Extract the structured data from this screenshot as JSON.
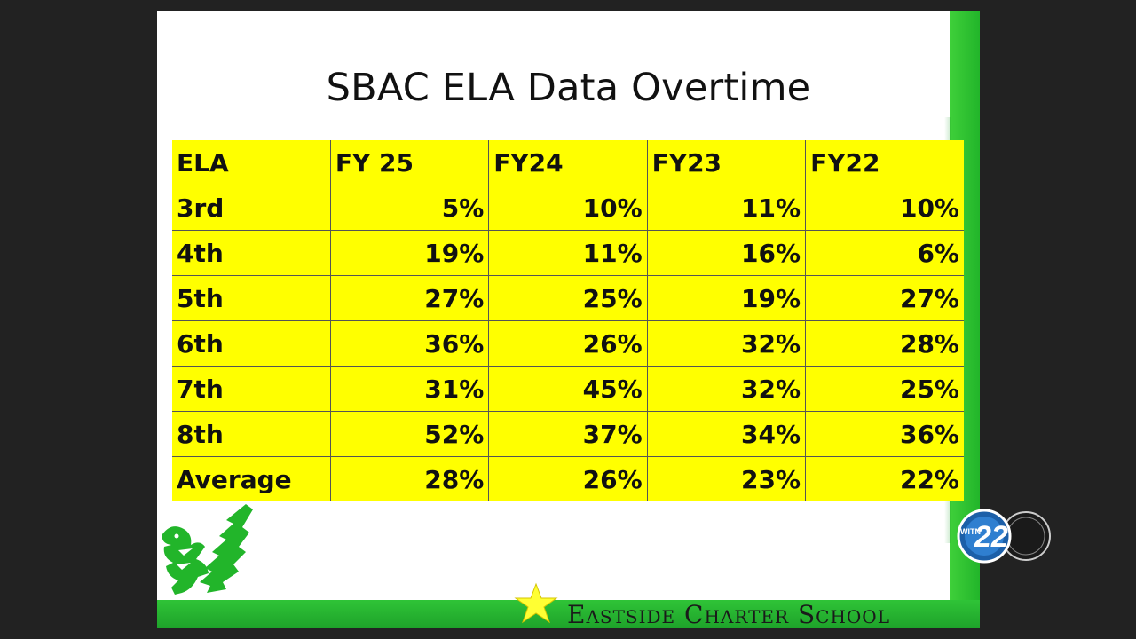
{
  "slide": {
    "title": "SBAC ELA Data Overtime",
    "table": {
      "headers": [
        "ELA",
        "FY 25",
        "FY24",
        "FY23",
        "FY22"
      ],
      "rows": [
        {
          "label": "3rd",
          "values": [
            "5%",
            "10%",
            "11%",
            "10%"
          ]
        },
        {
          "label": "4th",
          "values": [
            "19%",
            "11%",
            "16%",
            "6%"
          ]
        },
        {
          "label": "5th",
          "values": [
            "27%",
            "25%",
            "19%",
            "27%"
          ]
        },
        {
          "label": "6th",
          "values": [
            "36%",
            "26%",
            "32%",
            "28%"
          ]
        },
        {
          "label": "7th",
          "values": [
            "31%",
            "45%",
            "32%",
            "25%"
          ]
        },
        {
          "label": "8th",
          "values": [
            "52%",
            "37%",
            "34%",
            "36%"
          ]
        },
        {
          "label": "Average",
          "values": [
            "28%",
            "26%",
            "23%",
            "22%"
          ]
        }
      ]
    },
    "footer": {
      "school_name": "Eastside Charter School",
      "star_icon": "star-icon"
    },
    "logo_icon": "phoenix-logo-icon"
  },
  "overlay": {
    "station_badge_text": "22",
    "station_badge_prefix": "WITN"
  },
  "colors": {
    "table_fill": "#ffff00",
    "brand_green": "#22b52a",
    "star_yellow": "#ffff33",
    "background": "#222222"
  }
}
